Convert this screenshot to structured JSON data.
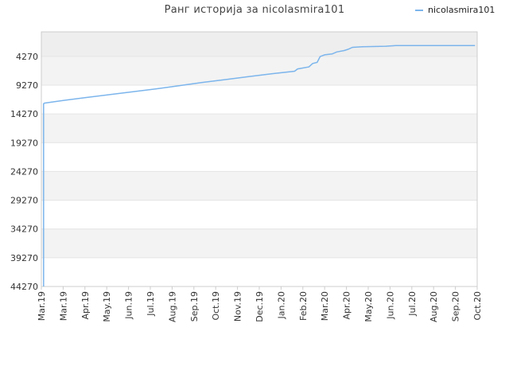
{
  "title": "Ранг историја за nicolasmira101",
  "legend": {
    "label": "nicolasmira101"
  },
  "colors": {
    "series": "#7cb5ec",
    "band_dark": "#eeeeee",
    "band_light": "#f3f3f3",
    "grid": "#e4e4e4",
    "axis": "#cccccc"
  },
  "chart_data": {
    "type": "line",
    "title": "Ранг историја за nicolasmira101",
    "xlabel": "",
    "ylabel": "",
    "y_inverted": true,
    "ylim": [
      44270,
      0
    ],
    "y_ticks": [
      4270,
      9270,
      14270,
      19270,
      24270,
      29270,
      34270,
      39270,
      44270
    ],
    "x_ticks": [
      "Mar.19",
      "Mar.19",
      "Apr.19",
      "May.19",
      "Jun.19",
      "Jul.19",
      "Aug.19",
      "Sep.19",
      "Oct.19",
      "Nov.19",
      "Dec.19",
      "Jan.20",
      "Feb.20",
      "Mar.20",
      "Apr.20",
      "May.20",
      "Jun.20",
      "Jul.20",
      "Aug.20",
      "Sep.20",
      "Oct.20"
    ],
    "series": [
      {
        "name": "nicolasmira101",
        "points": [
          [
            "2019-03-04",
            44270
          ],
          [
            "2019-03-04",
            12500
          ],
          [
            "2019-03-05",
            12400
          ],
          [
            "2019-03-15",
            12200
          ],
          [
            "2019-04-01",
            11900
          ],
          [
            "2019-05-01",
            11400
          ],
          [
            "2019-06-01",
            10900
          ],
          [
            "2019-07-01",
            10400
          ],
          [
            "2019-08-01",
            9900
          ],
          [
            "2019-09-01",
            9350
          ],
          [
            "2019-10-01",
            8800
          ],
          [
            "2019-11-01",
            8300
          ],
          [
            "2019-12-01",
            7800
          ],
          [
            "2020-01-01",
            7300
          ],
          [
            "2020-02-01",
            6850
          ],
          [
            "2020-02-05",
            6450
          ],
          [
            "2020-02-20",
            6100
          ],
          [
            "2020-02-25",
            5500
          ],
          [
            "2020-03-02",
            5300
          ],
          [
            "2020-03-06",
            4300
          ],
          [
            "2020-03-12",
            4000
          ],
          [
            "2020-03-22",
            3850
          ],
          [
            "2020-03-28",
            3500
          ],
          [
            "2020-04-07",
            3250
          ],
          [
            "2020-04-12",
            3050
          ],
          [
            "2020-04-18",
            2700
          ],
          [
            "2020-05-01",
            2600
          ],
          [
            "2020-06-01",
            2500
          ],
          [
            "2020-06-15",
            2400
          ],
          [
            "2020-07-01",
            2400
          ],
          [
            "2020-08-01",
            2400
          ],
          [
            "2020-09-01",
            2400
          ],
          [
            "2020-09-28",
            2400
          ]
        ]
      }
    ]
  }
}
